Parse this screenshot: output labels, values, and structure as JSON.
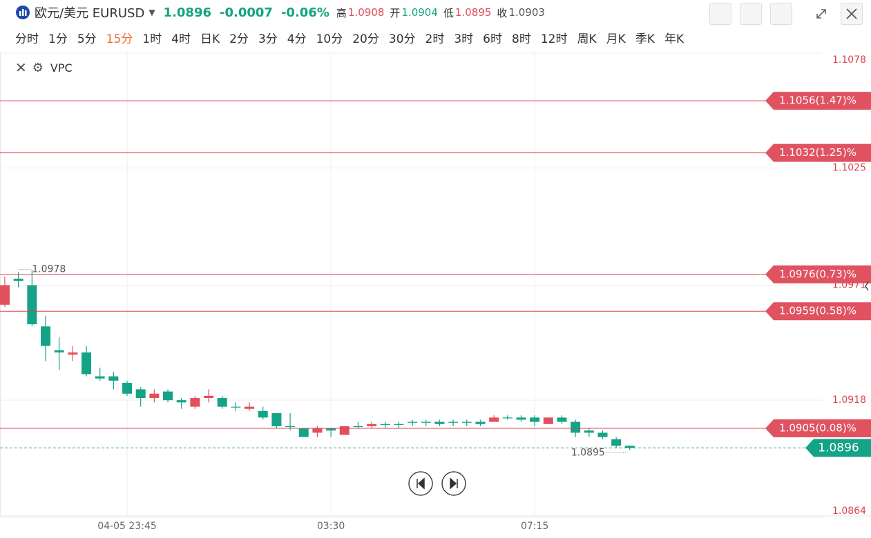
{
  "header": {
    "symbol": "欧元/美元 EURUSD",
    "price": "1.0896",
    "change": "-0.0007",
    "change_pct": "-0.06%",
    "high_label": "高",
    "high": "1.0908",
    "open_label": "开",
    "open": "1.0904",
    "low_label": "低",
    "low": "1.0895",
    "close_label": "收",
    "close": "1.0903"
  },
  "timeframes": [
    "分时",
    "1分",
    "5分",
    "15分",
    "1时",
    "4时",
    "日K",
    "2分",
    "3分",
    "4分",
    "10分",
    "20分",
    "30分",
    "2时",
    "3时",
    "6时",
    "8时",
    "12时",
    "周K",
    "月K",
    "季K",
    "年K"
  ],
  "active_timeframe": 3,
  "indicator": "VPC",
  "chart_data": {
    "type": "candlestick",
    "categories": [
      null,
      null,
      null,
      null,
      null,
      null,
      null,
      null,
      null,
      "04-05 23:45",
      null,
      null,
      null,
      null,
      null,
      null,
      null,
      null,
      null,
      null,
      null,
      null,
      null,
      null,
      "03:30",
      null,
      null,
      null,
      null,
      null,
      null,
      null,
      null,
      null,
      null,
      null,
      null,
      null,
      null,
      "07:15",
      null,
      null,
      null,
      null,
      null,
      null,
      null
    ],
    "open": [
      1.0962,
      1.0974,
      1.0971,
      1.0952,
      1.0941,
      1.0939,
      1.094,
      1.0929,
      1.0929,
      1.0926,
      1.0923,
      1.0919,
      1.0922,
      1.0918,
      1.0915,
      1.0919,
      1.0919,
      1.0915,
      1.0914,
      1.0913,
      1.0912,
      1.0906,
      1.0905,
      1.0903,
      1.0905,
      1.0902,
      1.0906,
      1.0906,
      1.0907,
      1.0907,
      1.0908,
      1.0908,
      1.0908,
      1.0908,
      1.0908,
      1.0908,
      1.0908,
      1.091,
      1.091,
      1.091,
      1.0907,
      1.091,
      1.0908,
      1.0904,
      1.0903,
      1.09,
      1.0897
    ],
    "high": [
      1.0975,
      1.0977,
      1.0978,
      1.0957,
      1.0947,
      1.0943,
      1.0943,
      1.0933,
      1.0931,
      1.0927,
      1.0924,
      1.0923,
      1.0923,
      1.0919,
      1.092,
      1.0923,
      1.092,
      1.0917,
      1.0917,
      1.0915,
      1.0912,
      1.0912,
      1.0905,
      1.0906,
      1.0905,
      1.0906,
      1.0908,
      1.0908,
      1.0908,
      1.0908,
      1.0909,
      1.0909,
      1.0909,
      1.0909,
      1.0909,
      1.0909,
      1.0911,
      1.0911,
      1.0911,
      1.0911,
      1.091,
      1.0911,
      1.0909,
      1.0905,
      1.0904,
      1.0901,
      1.0897
    ],
    "low": [
      1.0961,
      1.097,
      1.0952,
      1.0936,
      1.0932,
      1.0936,
      1.0929,
      1.0927,
      1.0923,
      1.092,
      1.0915,
      1.0917,
      1.0917,
      1.0914,
      1.0914,
      1.0917,
      1.0914,
      1.0913,
      1.0913,
      1.0909,
      1.0905,
      1.0904,
      1.0901,
      1.0901,
      1.0901,
      1.0902,
      1.0905,
      1.0905,
      1.0905,
      1.0905,
      1.0906,
      1.0906,
      1.0906,
      1.0906,
      1.0906,
      1.0906,
      1.0908,
      1.0909,
      1.0908,
      1.0906,
      1.0907,
      1.0907,
      1.0901,
      1.0901,
      1.09,
      1.0896,
      1.0895
    ],
    "close": [
      1.0971,
      1.0973,
      1.0953,
      1.0943,
      1.094,
      1.094,
      1.093,
      1.0928,
      1.0927,
      1.0921,
      1.0919,
      1.0921,
      1.0918,
      1.0917,
      1.0919,
      1.092,
      1.0915,
      1.0915,
      1.0915,
      1.091,
      1.0906,
      1.0906,
      1.0901,
      1.0905,
      1.0904,
      1.0906,
      1.0906,
      1.0907,
      1.0907,
      1.0907,
      1.0908,
      1.0908,
      1.0907,
      1.0908,
      1.0908,
      1.0907,
      1.091,
      1.091,
      1.0909,
      1.0908,
      1.091,
      1.0908,
      1.0903,
      1.0903,
      1.0901,
      1.0897,
      1.0896
    ],
    "up_color": "#e2505c",
    "down_color": "#14a386",
    "ylim": [
      1.0864,
      1.1078
    ],
    "yticks": [
      1.1078,
      1.1025,
      1.0971,
      1.0918,
      1.0864
    ],
    "grid": true,
    "levels": [
      {
        "value": 1.1056,
        "label": "1.1056(1.47)%"
      },
      {
        "value": 1.1032,
        "label": "1.1032(1.25)%"
      },
      {
        "value": 1.0976,
        "label": "1.0976(0.73)%"
      },
      {
        "value": 1.0959,
        "label": "1.0959(0.58)%"
      },
      {
        "value": 1.0905,
        "label": "1.0905(0.08)%"
      }
    ],
    "last": 1.0896,
    "max_label": 1.0978,
    "min_label": 1.0895
  }
}
